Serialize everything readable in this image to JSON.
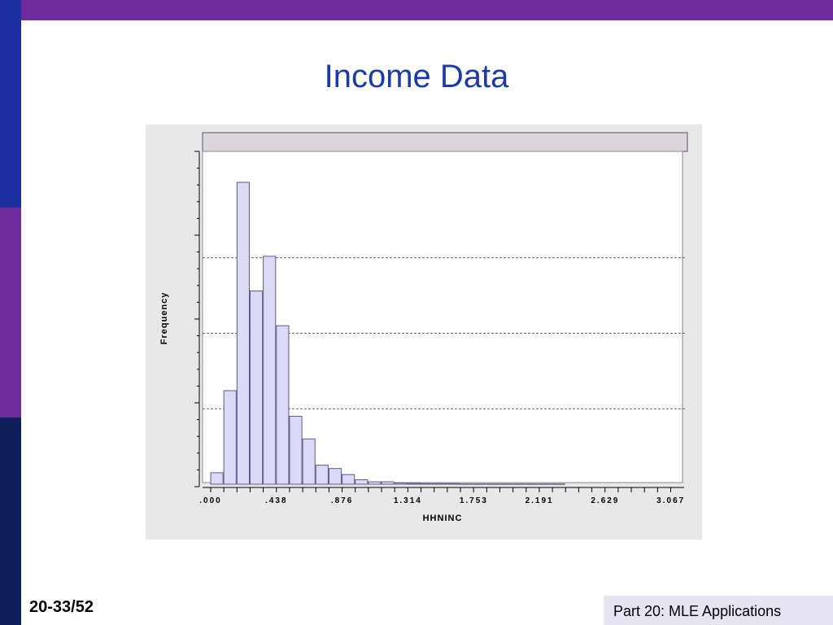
{
  "slide": {
    "title": "Income Data",
    "number": "20-33/52",
    "footer": "Part 20: MLE Applications"
  },
  "colors": {
    "purple": "#6f2da0",
    "blue": "#1b2fa0",
    "navy": "#0f1f5a",
    "title": "#1c3aa6",
    "bar_fill": "#d9daf6",
    "bar_edge": "#5a5a8a"
  },
  "chart_data": {
    "type": "bar",
    "title": "",
    "xlabel": "HHNINC",
    "ylabel": "Frequency",
    "x_tick_labels": [
      ".000",
      ".438",
      ".876",
      "1.314",
      "1.753",
      "2.191",
      "2.629",
      "3.067"
    ],
    "x_ticks": [
      0.0,
      0.438,
      0.876,
      1.314,
      1.753,
      2.191,
      2.629,
      3.067
    ],
    "xlim": [
      0.0,
      3.15
    ],
    "bin_width": 0.0876,
    "bin_starts": [
      0.0,
      0.0876,
      0.1752,
      0.2628,
      0.3504,
      0.438,
      0.5256,
      0.6132,
      0.7008,
      0.7884,
      0.876,
      0.9636,
      1.0512,
      1.1388,
      1.2264,
      1.314,
      1.4016,
      1.4892,
      1.5768,
      1.6644,
      1.752,
      1.8396,
      1.9272,
      2.0148,
      2.1024,
      2.19,
      2.2776
    ],
    "values": [
      0.038,
      0.31,
      1.0,
      0.64,
      0.755,
      0.525,
      0.225,
      0.15,
      0.063,
      0.052,
      0.032,
      0.015,
      0.008,
      0.008,
      0.004,
      0.003,
      0.002,
      0.002,
      0.002,
      0.001,
      0.001,
      0.001,
      0.001,
      0.001,
      0.001,
      0.001,
      0.001
    ],
    "y_scale": "relative frequency (no tick labels shown)",
    "ylim": [
      0,
      1.0
    ],
    "grid": "horizontal dashed lines at 0.25, 0.5, 0.75",
    "gridlines": [
      0.25,
      0.5,
      0.75
    ],
    "legend": "none"
  }
}
